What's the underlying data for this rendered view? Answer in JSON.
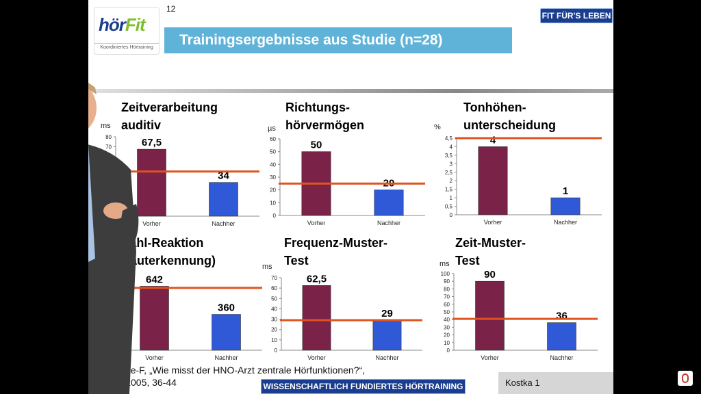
{
  "slide": {
    "page_number": "12",
    "logo": {
      "word_a": "hör",
      "word_b": "Fit",
      "subtitle": "Koordiniertes Hörtraining"
    },
    "badge": "FIT FÜR'S LEBEN",
    "title": "Trainingsergebnisse  aus Studie (n=28)",
    "footnote_line1": "lle: Warnke-F, „Wie misst der HNO-Arzt zentrale Hörfunktionen?“,",
    "footnote_line2": "ogy, Juli 2005, 36-44",
    "banner": "WISSENSCHAFTLICH FUNDIERTES HÖRTRAINING",
    "corner_label": "Kostka 1"
  },
  "colors": {
    "vorher": "#7a2248",
    "nachher": "#2f59d6",
    "threshold": "#e0531e",
    "title_bg": "#5fb3d9",
    "badge_bg": "#1a3d8f"
  },
  "chart_data": [
    {
      "type": "bar",
      "title_lines": [
        "Zeitverarbeitung",
        "auditiv"
      ],
      "unit": "ms",
      "categories": [
        "Vorher",
        "Nachher"
      ],
      "values": [
        67.5,
        34
      ],
      "value_labels": [
        "67,5",
        "34"
      ],
      "ylim": [
        0,
        80
      ],
      "yticks": [
        "70",
        "80"
      ],
      "threshold": 45
    },
    {
      "type": "bar",
      "title_lines": [
        "Richtungs-",
        "hörvermögen"
      ],
      "unit": "µs",
      "categories": [
        "Vorher",
        "Nachher"
      ],
      "values": [
        50,
        20
      ],
      "value_labels": [
        "50",
        "20"
      ],
      "ylim": [
        0,
        60
      ],
      "yticks": [
        "0",
        "10",
        "20",
        "30",
        "40",
        "50",
        "60"
      ],
      "threshold": 25
    },
    {
      "type": "bar",
      "title_lines": [
        "Tonhöhen-",
        "unterscheidung"
      ],
      "unit": "%",
      "categories": [
        "Vorher",
        "Nachher"
      ],
      "values": [
        4,
        1
      ],
      "value_labels": [
        "4",
        "1"
      ],
      "ylim": [
        0,
        4.5
      ],
      "yticks": [
        "0",
        "0,5",
        "1",
        "1,5",
        "2",
        "2,5",
        "3",
        "3,5",
        "4",
        "4,5"
      ],
      "threshold": 4.5
    },
    {
      "type": "bar",
      "title_lines": [
        "Wahl-Reaktion",
        "(Lauterkennung)"
      ],
      "unit": "",
      "categories": [
        "Vorher",
        "Nachher"
      ],
      "values": [
        642,
        360
      ],
      "value_labels": [
        "642",
        "360"
      ],
      "ylim": [
        0,
        700
      ],
      "yticks": [],
      "threshold": 625
    },
    {
      "type": "bar",
      "title_lines": [
        "Frequenz-Muster-",
        "Test"
      ],
      "unit": "ms",
      "categories": [
        "Vorher",
        "Nachher"
      ],
      "values": [
        62.5,
        29
      ],
      "value_labels": [
        "62,5",
        "29"
      ],
      "ylim": [
        0,
        70
      ],
      "yticks": [
        "0",
        "10",
        "20",
        "30",
        "40",
        "50",
        "60",
        "70"
      ],
      "threshold": 29
    },
    {
      "type": "bar",
      "title_lines": [
        "Zeit-Muster-",
        "Test"
      ],
      "unit": "ms",
      "categories": [
        "Vorher",
        "Nachher"
      ],
      "values": [
        90,
        36
      ],
      "value_labels": [
        "90",
        "36"
      ],
      "ylim": [
        0,
        100
      ],
      "yticks": [
        "0",
        "10",
        "20",
        "30",
        "40",
        "50",
        "60",
        "70",
        "80",
        "90",
        "100"
      ],
      "threshold": 41
    }
  ]
}
